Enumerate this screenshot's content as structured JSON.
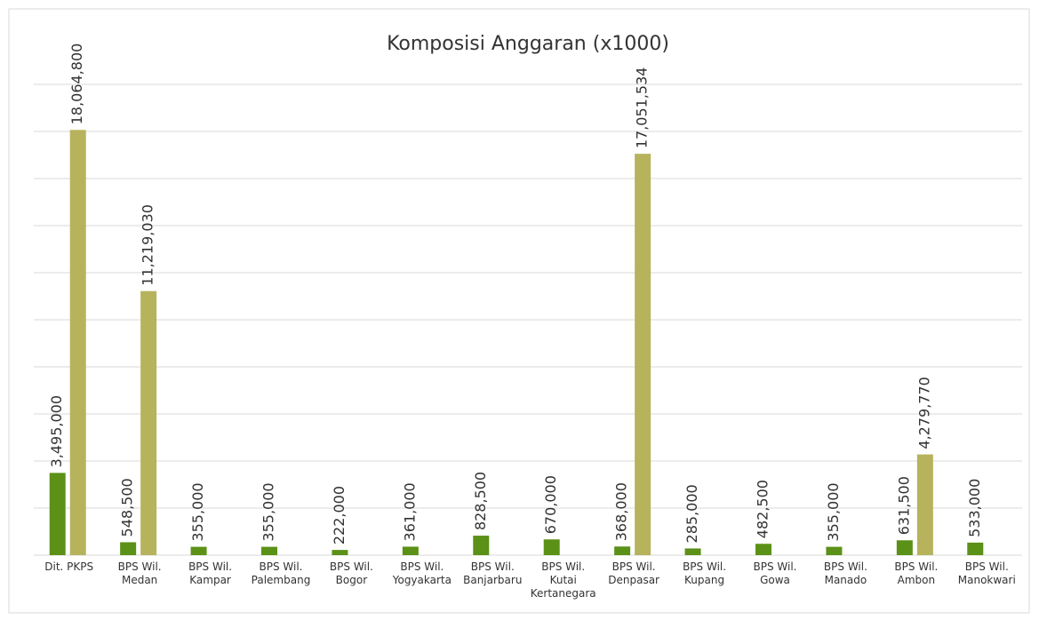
{
  "chart_data": {
    "type": "bar",
    "title": "Komposisi Anggaran (x1000)",
    "categories": [
      "Dit. PKPS",
      "BPS Wil.\nMedan",
      "BPS Wil.\nKampar",
      "BPS Wil.\nPalembang",
      "BPS Wil.\nBogor",
      "BPS Wil.\nYogyakarta",
      "BPS Wil.\nBanjarbaru",
      "BPS Wil.\nKutai\nKertanegara",
      "BPS Wil.\nDenpasar",
      "BPS Wil.\nKupang",
      "BPS Wil.\nGowa",
      "BPS Wil.\nManado",
      "BPS Wil.\nAmbon",
      "BPS Wil.\nManokwari"
    ],
    "series": [
      {
        "color": "#5b9117",
        "values": [
          3495000,
          548500,
          355000,
          355000,
          222000,
          361000,
          828500,
          670000,
          368000,
          285000,
          482500,
          355000,
          631500,
          533000
        ],
        "value_labels": [
          "3,495,000",
          "548,500",
          "355,000",
          "355,000",
          "222,000",
          "361,000",
          "828,500",
          "670,000",
          "368,000",
          "285,000",
          "482,500",
          "355,000",
          "631,500",
          "533,000"
        ]
      },
      {
        "color": "#b6b35c",
        "values": [
          18064800,
          11219030,
          null,
          null,
          null,
          null,
          null,
          null,
          17051534,
          null,
          null,
          null,
          4279770,
          null
        ],
        "value_labels": [
          "18,064,800",
          "11,219,030",
          null,
          null,
          null,
          null,
          null,
          null,
          "17,051,534",
          null,
          null,
          null,
          "4,279,770",
          null
        ]
      }
    ],
    "ylim": [
      0,
      20000000
    ],
    "yticks": [
      0,
      2000000,
      4000000,
      6000000,
      8000000,
      10000000,
      12000000,
      14000000,
      16000000,
      18000000,
      20000000
    ],
    "grid": true
  }
}
